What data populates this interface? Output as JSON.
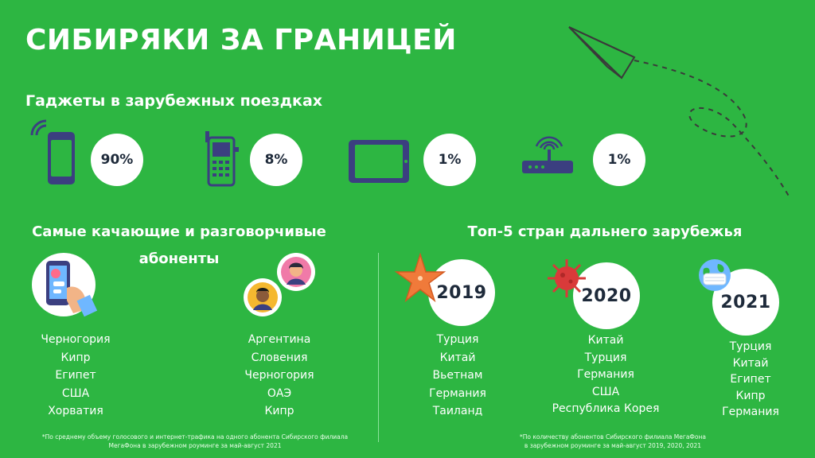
{
  "title": "СИБИРЯКИ ЗА ГРАНИЦЕЙ",
  "gadgets": {
    "heading": "Гаджеты в зарубежных поездках",
    "items": [
      {
        "icon": "smartphone-icon",
        "value": "90%"
      },
      {
        "icon": "feature-phone-icon",
        "value": "8%"
      },
      {
        "icon": "tablet-icon",
        "value": "1%"
      },
      {
        "icon": "router-icon",
        "value": "1%"
      }
    ]
  },
  "subscribers": {
    "heading_line1": "Самые качающие и разговорчивые",
    "heading_line2": "абоненты",
    "data_list": [
      "Черногория",
      "Кипр",
      "Египет",
      "США",
      "Хорватия"
    ],
    "voice_list": [
      "Аргентина",
      "Словения",
      "Черногория",
      "ОАЭ",
      "Кипр"
    ],
    "footnote_line1": "*По среднему объему голосового и интернет-трафика на одного абонента Сибирского филиала",
    "footnote_line2": "МегаФона в зарубежном роуминге за май-август 2021"
  },
  "top5": {
    "heading": "Топ-5 стран дальнего зарубежья",
    "years": [
      {
        "year": "2019",
        "countries": [
          "Турция",
          "Китай",
          "Вьетнам",
          "Германия",
          "Таиланд"
        ]
      },
      {
        "year": "2020",
        "countries": [
          "Китай",
          "Турция",
          "Германия",
          "США",
          "Республика Корея"
        ]
      },
      {
        "year": "2021",
        "countries": [
          "Турция",
          "Китай",
          "Египет",
          "Кипр",
          "Германия"
        ]
      }
    ],
    "footnote_line1": "*По количеству абонентов Сибирского филиала МегаФона",
    "footnote_line2": "в зарубежном роуминге за май-август 2019, 2020, 2021"
  },
  "colors": {
    "background": "#2db642",
    "icon_navy": "#3b3f80",
    "text_dark": "#1e2a3a",
    "starfish": "#f07a3a",
    "virus": "#d93a3a"
  }
}
